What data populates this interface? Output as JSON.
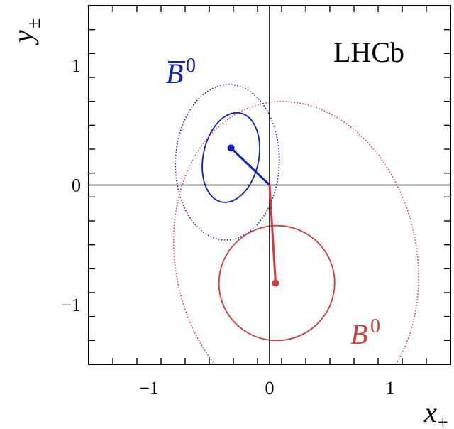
{
  "chart_data": {
    "type": "scatter",
    "title": "",
    "experiment_label": "LHCb",
    "xlabel": {
      "symbol": "x",
      "subscript": "+"
    },
    "ylabel": {
      "symbol": "y",
      "subscript": "±"
    },
    "xlim": [
      -1.5,
      1.5
    ],
    "ylim": [
      -1.5,
      1.5
    ],
    "xticks": [
      -1,
      0,
      1
    ],
    "xtick_labels": [
      "−1",
      "0",
      "1"
    ],
    "yticks": [
      -1,
      0,
      1
    ],
    "ytick_labels": [
      "−1",
      "0",
      "1"
    ],
    "grid": false,
    "legend": "none",
    "series": [
      {
        "name": "B̄0",
        "label": {
          "symbol": "B",
          "bar": true,
          "superscript": "0"
        },
        "color": "#0b1fc4",
        "point": {
          "x": -0.32,
          "y": 0.31
        },
        "contour_inner": {
          "cx": -0.32,
          "cy": 0.23,
          "rx": 0.23,
          "ry": 0.38,
          "rotation_deg": 12,
          "style": "solid"
        },
        "contour_outer": {
          "cx": -0.35,
          "cy": 0.19,
          "rx": 0.43,
          "ry": 0.65,
          "rotation_deg": 2,
          "style": "dotted"
        }
      },
      {
        "name": "B0",
        "label": {
          "symbol": "B",
          "bar": false,
          "superscript": "0"
        },
        "color": "#d03b3b",
        "point": {
          "x": 0.05,
          "y": -0.82
        },
        "contour_inner": {
          "cx": 0.06,
          "cy": -0.82,
          "rx": 0.48,
          "ry": 0.48,
          "rotation_deg": -10,
          "style": "solid"
        },
        "contour_outer": {
          "cx": 0.22,
          "cy": -0.62,
          "rx": 1.0,
          "ry": 1.33,
          "rotation_deg": -12,
          "style": "dotted"
        }
      }
    ],
    "origin": {
      "x": 0,
      "y": 0
    }
  }
}
